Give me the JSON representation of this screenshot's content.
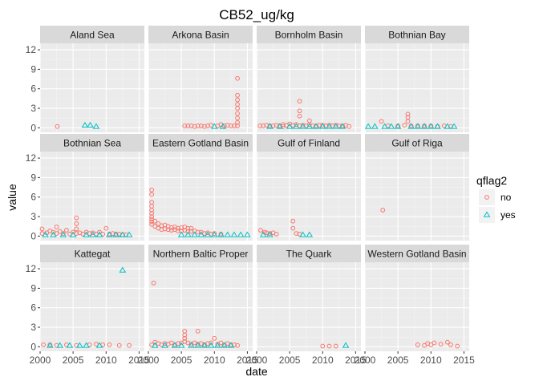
{
  "chart_data": {
    "type": "scatter",
    "title": "CB52_ug/kg",
    "xlabel": "date",
    "ylabel": "value",
    "x_ticks": [
      "2000",
      "2005",
      "2010",
      "2015"
    ],
    "y_ticks": [
      "0",
      "3",
      "6",
      "9",
      "12"
    ],
    "xlim": [
      2000,
      2015.8
    ],
    "ylim": [
      -0.7,
      13.0
    ],
    "x_tick_values": [
      2000,
      2005,
      2010,
      2015
    ],
    "y_tick_values": [
      0,
      3,
      6,
      9,
      12
    ],
    "grid": true,
    "legend": {
      "title": "qflag2",
      "position": "right",
      "entries": [
        {
          "label": "no",
          "shape": "circle",
          "color": "#F8766D"
        },
        {
          "label": "yes",
          "shape": "triangle",
          "color": "#00BFC4"
        }
      ]
    },
    "panels": [
      {
        "name": "Aland Sea",
        "no": [
          [
            2002.6,
            0.2
          ]
        ],
        "yes": [
          [
            2006.8,
            0.3
          ],
          [
            2007.6,
            0.3
          ],
          [
            2008.5,
            0.1
          ]
        ]
      },
      {
        "name": "Arkona Basin",
        "no": [
          [
            2005.5,
            0.3
          ],
          [
            2006.0,
            0.3
          ],
          [
            2006.5,
            0.3
          ],
          [
            2007.0,
            0.2
          ],
          [
            2007.5,
            0.3
          ],
          [
            2008.0,
            0.3
          ],
          [
            2008.5,
            0.2
          ],
          [
            2009.0,
            0.3
          ],
          [
            2009.5,
            0.4
          ],
          [
            2010.5,
            0.3
          ],
          [
            2011.0,
            0.5
          ],
          [
            2011.5,
            0.3
          ],
          [
            2012.0,
            0.4
          ],
          [
            2012.5,
            0.3
          ],
          [
            2013.0,
            0.3
          ],
          [
            2013.5,
            0.3
          ],
          [
            2013.5,
            0.8
          ],
          [
            2013.5,
            1.5
          ],
          [
            2013.5,
            2.2
          ],
          [
            2013.5,
            3.0
          ],
          [
            2013.5,
            3.6
          ],
          [
            2013.5,
            4.3
          ],
          [
            2013.5,
            5.0
          ],
          [
            2013.5,
            7.6
          ]
        ],
        "yes": [
          [
            2010.0,
            0.1
          ],
          [
            2011.3,
            0.1
          ]
        ]
      },
      {
        "name": "Bornholm Basin",
        "no": [
          [
            2000.5,
            0.3
          ],
          [
            2001.0,
            0.3
          ],
          [
            2001.5,
            0.4
          ],
          [
            2002.0,
            0.3
          ],
          [
            2002.5,
            0.3
          ],
          [
            2003.0,
            0.4
          ],
          [
            2003.5,
            0.3
          ],
          [
            2004.0,
            0.5
          ],
          [
            2004.0,
            0.2
          ],
          [
            2004.5,
            0.4
          ],
          [
            2005.0,
            0.6
          ],
          [
            2005.5,
            0.4
          ],
          [
            2006.0,
            0.5
          ],
          [
            2006.5,
            0.3
          ],
          [
            2006.5,
            1.8
          ],
          [
            2006.5,
            2.6
          ],
          [
            2006.5,
            4.1
          ],
          [
            2007.0,
            0.4
          ],
          [
            2007.5,
            0.3
          ],
          [
            2008.0,
            0.5
          ],
          [
            2008.0,
            1.1
          ],
          [
            2008.5,
            0.3
          ],
          [
            2009.0,
            0.3
          ],
          [
            2009.5,
            0.4
          ],
          [
            2010.0,
            0.4
          ],
          [
            2010.5,
            0.3
          ],
          [
            2011.0,
            0.4
          ],
          [
            2011.5,
            0.3
          ],
          [
            2012.0,
            0.4
          ],
          [
            2012.5,
            0.3
          ],
          [
            2013.0,
            0.3
          ],
          [
            2013.5,
            0.4
          ],
          [
            2014.0,
            0.2
          ]
        ],
        "yes": [
          [
            2002.0,
            0.1
          ],
          [
            2003.5,
            0.1
          ],
          [
            2005.0,
            0.1
          ],
          [
            2006.0,
            0.1
          ],
          [
            2007.0,
            0.1
          ],
          [
            2008.0,
            0.1
          ],
          [
            2009.0,
            0.1
          ],
          [
            2010.0,
            0.1
          ],
          [
            2011.0,
            0.1
          ],
          [
            2012.0,
            0.1
          ],
          [
            2013.0,
            0.1
          ]
        ]
      },
      {
        "name": "Bothnian Bay",
        "no": [
          [
            2002.5,
            1.0
          ],
          [
            2003.5,
            0.3
          ],
          [
            2005.0,
            0.3
          ],
          [
            2006.0,
            0.4
          ],
          [
            2006.5,
            1.0
          ],
          [
            2006.5,
            1.6
          ],
          [
            2006.5,
            2.1
          ],
          [
            2007.0,
            0.3
          ],
          [
            2008.0,
            0.3
          ],
          [
            2009.0,
            0.3
          ],
          [
            2010.0,
            0.3
          ],
          [
            2011.0,
            0.2
          ],
          [
            2012.0,
            0.3
          ],
          [
            2013.0,
            0.2
          ]
        ],
        "yes": [
          [
            2000.5,
            0.1
          ],
          [
            2001.5,
            0.1
          ],
          [
            2003.0,
            0.1
          ],
          [
            2004.0,
            0.1
          ],
          [
            2005.0,
            0.1
          ],
          [
            2007.0,
            0.1
          ],
          [
            2008.0,
            0.1
          ],
          [
            2009.0,
            0.1
          ],
          [
            2010.0,
            0.1
          ],
          [
            2011.0,
            0.1
          ],
          [
            2012.5,
            0.1
          ],
          [
            2013.5,
            0.1
          ]
        ]
      },
      {
        "name": "Bothnian Sea",
        "no": [
          [
            2000.3,
            0.4
          ],
          [
            2000.3,
            1.1
          ],
          [
            2001.0,
            0.5
          ],
          [
            2001.5,
            0.8
          ],
          [
            2002.0,
            0.6
          ],
          [
            2002.5,
            0.4
          ],
          [
            2002.5,
            1.4
          ],
          [
            2003.0,
            0.7
          ],
          [
            2003.5,
            0.4
          ],
          [
            2004.0,
            0.9
          ],
          [
            2004.5,
            0.3
          ],
          [
            2005.0,
            0.6
          ],
          [
            2005.5,
            0.4
          ],
          [
            2005.5,
            1.1
          ],
          [
            2005.5,
            1.9
          ],
          [
            2005.5,
            2.8
          ],
          [
            2006.0,
            0.5
          ],
          [
            2006.5,
            0.3
          ],
          [
            2007.0,
            0.6
          ],
          [
            2007.5,
            0.4
          ],
          [
            2008.0,
            0.5
          ],
          [
            2008.5,
            0.3
          ],
          [
            2009.0,
            0.6
          ],
          [
            2009.5,
            0.3
          ],
          [
            2010.0,
            1.2
          ],
          [
            2010.5,
            0.3
          ],
          [
            2011.0,
            0.4
          ],
          [
            2011.5,
            0.3
          ],
          [
            2012.0,
            0.3
          ],
          [
            2012.5,
            0.2
          ],
          [
            2013.0,
            0.2
          ]
        ],
        "yes": [
          [
            2000.8,
            0.1
          ],
          [
            2002.0,
            0.1
          ],
          [
            2003.5,
            0.1
          ],
          [
            2005.0,
            0.1
          ],
          [
            2007.0,
            0.1
          ],
          [
            2008.0,
            0.1
          ],
          [
            2009.0,
            0.1
          ],
          [
            2010.5,
            0.1
          ],
          [
            2011.5,
            0.1
          ],
          [
            2012.5,
            0.1
          ],
          [
            2013.5,
            0.1
          ]
        ]
      },
      {
        "name": "Eastern Gotland Basin",
        "no": [
          [
            2000.5,
            7.1
          ],
          [
            2000.5,
            6.4
          ],
          [
            2000.5,
            5.2
          ],
          [
            2000.5,
            4.6
          ],
          [
            2000.5,
            4.0
          ],
          [
            2000.5,
            3.5
          ],
          [
            2000.5,
            3.0
          ],
          [
            2000.5,
            2.6
          ],
          [
            2000.5,
            2.2
          ],
          [
            2000.5,
            1.8
          ],
          [
            2001.0,
            2.3
          ],
          [
            2001.0,
            1.5
          ],
          [
            2001.5,
            1.9
          ],
          [
            2001.5,
            1.2
          ],
          [
            2002.0,
            1.6
          ],
          [
            2002.0,
            1.0
          ],
          [
            2002.5,
            1.7
          ],
          [
            2002.5,
            1.1
          ],
          [
            2003.0,
            1.5
          ],
          [
            2003.0,
            1.0
          ],
          [
            2003.5,
            1.3
          ],
          [
            2003.5,
            0.9
          ],
          [
            2004.0,
            1.4
          ],
          [
            2004.0,
            1.0
          ],
          [
            2004.5,
            1.2
          ],
          [
            2004.5,
            0.8
          ],
          [
            2005.0,
            1.3
          ],
          [
            2005.0,
            0.8
          ],
          [
            2005.5,
            1.4
          ],
          [
            2005.5,
            0.9
          ],
          [
            2006.0,
            1.2
          ],
          [
            2006.0,
            0.7
          ],
          [
            2006.5,
            1.2
          ],
          [
            2006.5,
            0.7
          ],
          [
            2007.0,
            0.8
          ],
          [
            2007.5,
            0.6
          ],
          [
            2008.0,
            0.6
          ],
          [
            2008.5,
            0.4
          ],
          [
            2009.0,
            0.5
          ],
          [
            2009.5,
            0.3
          ],
          [
            2010.0,
            0.4
          ],
          [
            2011.0,
            0.3
          ]
        ],
        "yes": [
          [
            2005.0,
            0.1
          ],
          [
            2006.0,
            0.1
          ],
          [
            2007.0,
            0.1
          ],
          [
            2008.0,
            0.1
          ],
          [
            2009.0,
            0.1
          ],
          [
            2010.0,
            0.1
          ],
          [
            2011.0,
            0.1
          ],
          [
            2012.0,
            0.1
          ],
          [
            2013.0,
            0.1
          ],
          [
            2014.0,
            0.1
          ],
          [
            2015.0,
            0.1
          ]
        ]
      },
      {
        "name": "Gulf of Finland",
        "no": [
          [
            2000.6,
            0.9
          ],
          [
            2001.2,
            0.6
          ],
          [
            2001.5,
            0.5
          ],
          [
            2002.0,
            0.4
          ],
          [
            2002.5,
            0.5
          ],
          [
            2003.0,
            0.3
          ],
          [
            2005.5,
            1.2
          ],
          [
            2005.5,
            2.3
          ],
          [
            2006.0,
            0.4
          ],
          [
            2006.5,
            0.3
          ]
        ],
        "yes": [
          [
            2001.0,
            0.1
          ],
          [
            2002.0,
            0.1
          ],
          [
            2007.0,
            0.1
          ],
          [
            2008.0,
            0.1
          ]
        ]
      },
      {
        "name": "Gulf of Riga",
        "no": [
          [
            2002.7,
            4.0
          ]
        ],
        "yes": []
      },
      {
        "name": "Kattegat",
        "no": [
          [
            2000.5,
            0.3
          ],
          [
            2001.5,
            0.3
          ],
          [
            2002.5,
            0.2
          ],
          [
            2004.0,
            0.3
          ],
          [
            2005.5,
            0.2
          ],
          [
            2007.5,
            0.3
          ],
          [
            2008.5,
            0.4
          ],
          [
            2009.5,
            0.3
          ],
          [
            2010.5,
            0.3
          ],
          [
            2012.0,
            0.2
          ],
          [
            2013.5,
            0.2
          ]
        ],
        "yes": [
          [
            2001.5,
            0.1
          ],
          [
            2003.0,
            0.1
          ],
          [
            2004.5,
            0.1
          ],
          [
            2006.0,
            0.1
          ],
          [
            2007.0,
            0.1
          ],
          [
            2009.0,
            0.1
          ],
          [
            2012.5,
            11.7
          ]
        ]
      },
      {
        "name": "Northern Baltic Proper",
        "no": [
          [
            2000.8,
            9.8
          ],
          [
            2000.5,
            0.3
          ],
          [
            2001.0,
            0.7
          ],
          [
            2001.5,
            0.5
          ],
          [
            2002.0,
            0.3
          ],
          [
            2002.5,
            0.5
          ],
          [
            2003.0,
            0.4
          ],
          [
            2003.5,
            0.6
          ],
          [
            2004.0,
            0.3
          ],
          [
            2004.5,
            0.5
          ],
          [
            2005.0,
            0.6
          ],
          [
            2005.5,
            0.8
          ],
          [
            2005.5,
            1.3
          ],
          [
            2005.5,
            1.8
          ],
          [
            2005.5,
            2.4
          ],
          [
            2006.0,
            0.6
          ],
          [
            2006.5,
            0.4
          ],
          [
            2007.0,
            0.6
          ],
          [
            2007.5,
            0.4
          ],
          [
            2007.5,
            2.4
          ],
          [
            2008.0,
            0.5
          ],
          [
            2008.5,
            0.3
          ],
          [
            2009.0,
            0.5
          ],
          [
            2009.5,
            0.6
          ],
          [
            2010.0,
            1.3
          ],
          [
            2010.5,
            0.4
          ],
          [
            2011.0,
            0.6
          ],
          [
            2011.5,
            0.3
          ],
          [
            2012.0,
            0.5
          ],
          [
            2012.5,
            0.3
          ],
          [
            2013.0,
            0.3
          ],
          [
            2013.5,
            0.2
          ]
        ],
        "yes": [
          [
            2001.0,
            0.1
          ],
          [
            2002.5,
            0.1
          ],
          [
            2004.0,
            0.1
          ],
          [
            2005.0,
            0.1
          ],
          [
            2006.5,
            0.1
          ],
          [
            2007.5,
            0.1
          ],
          [
            2008.5,
            0.1
          ],
          [
            2009.5,
            0.1
          ],
          [
            2010.5,
            0.1
          ],
          [
            2011.5,
            0.1
          ],
          [
            2012.5,
            0.1
          ]
        ]
      },
      {
        "name": "The Quark",
        "no": [
          [
            2010.0,
            0.1
          ],
          [
            2011.0,
            0.1
          ],
          [
            2012.0,
            0.1
          ]
        ],
        "yes": [
          [
            2013.5,
            0.1
          ]
        ]
      },
      {
        "name": "Western Gotland Basin",
        "no": [
          [
            2008.0,
            0.3
          ],
          [
            2009.0,
            0.2
          ],
          [
            2009.5,
            0.5
          ],
          [
            2010.0,
            0.3
          ],
          [
            2010.5,
            0.6
          ],
          [
            2011.5,
            0.4
          ],
          [
            2012.5,
            0.7
          ],
          [
            2013.0,
            0.3
          ],
          [
            2014.0,
            0.1
          ]
        ],
        "yes": []
      }
    ]
  }
}
